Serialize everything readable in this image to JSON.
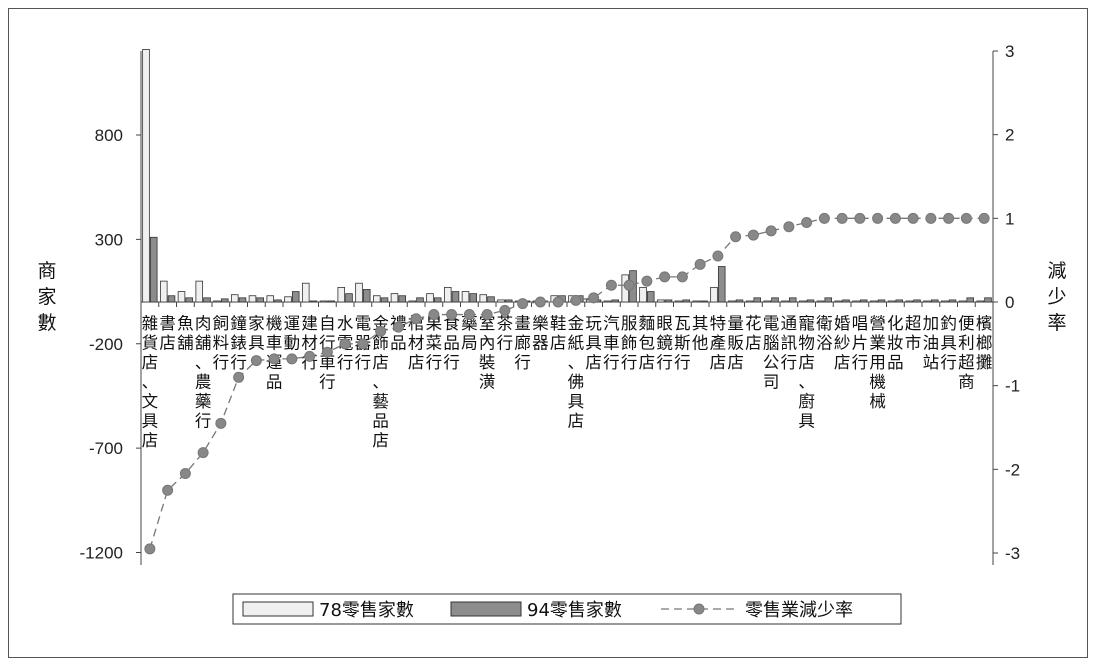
{
  "chart_data": {
    "type": "bar",
    "left_axis_title": [
      "商",
      "家",
      "數"
    ],
    "right_axis_title": [
      "減",
      "少",
      "率"
    ],
    "left_ticks": [
      800,
      300,
      -200,
      -700,
      -1200
    ],
    "right_ticks": [
      3,
      2,
      1,
      0,
      -1,
      -2,
      -3
    ],
    "ylim_left": [
      -1200,
      1300
    ],
    "ylim_right": [
      -3,
      3
    ],
    "categories": [
      "雜貨店、文具店",
      "書店",
      "魚舖",
      "肉舖、農藥行",
      "飼料行",
      "鐘錶行",
      "家具",
      "機車運品",
      "運動",
      "建材行",
      "自行車行",
      "水電行",
      "電器行",
      "金飾店、藝品店",
      "禮品",
      "棺材店",
      "果菜行",
      "食品行",
      "藥局",
      "室內裝潢",
      "茶行",
      "畫廊行",
      "樂器",
      "鞋店",
      "金紙、佛具店",
      "玩具店",
      "汽車行",
      "服飾行",
      "麵包店",
      "眼鏡行",
      "瓦斯行",
      "其他",
      "特產店",
      "量販店",
      "花店",
      "電腦公司",
      "通訊行",
      "寵物店、廚具",
      "衛浴",
      "婚紗店",
      "唱片行",
      "營業用機械",
      "化妝品",
      "超市",
      "加油站",
      "釣具行",
      "便利超商",
      "檳榔攤"
    ],
    "series": [
      {
        "name": "78零售家數",
        "values": [
          1210,
          100,
          50,
          100,
          5,
          35,
          30,
          30,
          25,
          90,
          5,
          70,
          90,
          30,
          40,
          5,
          40,
          70,
          50,
          35,
          10,
          5,
          5,
          30,
          30,
          10,
          5,
          130,
          70,
          10,
          5,
          5,
          70,
          5,
          5,
          5,
          5,
          5,
          5,
          5,
          5,
          5,
          5,
          5,
          5,
          5,
          5,
          5
        ]
      },
      {
        "name": "94零售家數",
        "values": [
          310,
          30,
          20,
          20,
          15,
          20,
          20,
          10,
          50,
          5,
          5,
          40,
          60,
          20,
          30,
          20,
          20,
          50,
          40,
          25,
          10,
          5,
          5,
          30,
          30,
          10,
          10,
          150,
          50,
          10,
          10,
          5,
          170,
          10,
          20,
          20,
          20,
          10,
          20,
          10,
          10,
          10,
          10,
          10,
          10,
          10,
          20,
          20
        ]
      },
      {
        "name": "零售業減少率",
        "values": [
          -2.95,
          -2.25,
          -2.05,
          -1.8,
          -1.45,
          -0.9,
          -0.7,
          -0.68,
          -0.68,
          -0.65,
          -0.6,
          -0.5,
          -0.5,
          -0.35,
          -0.3,
          -0.2,
          -0.15,
          -0.15,
          -0.15,
          -0.15,
          -0.1,
          -0.02,
          0,
          0,
          0.02,
          0.05,
          0.2,
          0.2,
          0.25,
          0.3,
          0.3,
          0.45,
          0.55,
          0.78,
          0.8,
          0.85,
          0.9,
          0.95,
          1,
          1,
          1,
          1,
          1,
          1,
          1,
          1,
          1,
          1
        ]
      }
    ],
    "legend_position": "bottom",
    "colors": {
      "bar78": "#f0f0f0",
      "bar94": "#8c8c8c",
      "line": "#777777"
    }
  }
}
